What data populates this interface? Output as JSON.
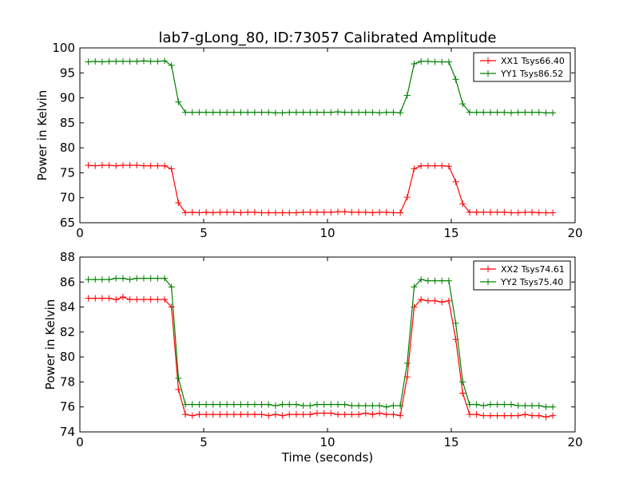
{
  "chart_data": [
    {
      "type": "line",
      "title": "lab7-gLong_80, ID:73057 Calibrated Amplitude",
      "xlabel": "",
      "ylabel": "Power in Kelvin",
      "xlim": [
        0,
        20
      ],
      "ylim": [
        65,
        100
      ],
      "x_ticks": [
        "0",
        "5",
        "10",
        "15",
        "20"
      ],
      "y_ticks": [
        "65",
        "70",
        "75",
        "80",
        "85",
        "90",
        "95",
        "100"
      ],
      "legend_position": "top-right",
      "grid": false,
      "x": [
        0.34,
        0.62,
        0.9,
        1.18,
        1.46,
        1.74,
        2.02,
        2.3,
        2.58,
        2.86,
        3.14,
        3.42,
        3.7,
        3.98,
        4.26,
        4.54,
        4.82,
        5.1,
        5.38,
        5.66,
        5.94,
        6.22,
        6.5,
        6.78,
        7.06,
        7.34,
        7.62,
        7.9,
        8.18,
        8.46,
        8.74,
        9.02,
        9.3,
        9.58,
        9.86,
        10.14,
        10.42,
        10.7,
        10.98,
        11.26,
        11.54,
        11.82,
        12.1,
        12.38,
        12.66,
        12.94,
        13.22,
        13.5,
        13.78,
        14.06,
        14.34,
        14.62,
        14.9,
        15.18,
        15.46,
        15.74,
        16.02,
        16.3,
        16.58,
        16.86,
        17.14,
        17.42,
        17.7,
        17.98,
        18.26,
        18.54,
        18.82,
        19.1
      ],
      "series": [
        {
          "name": "XX1 Tsys66.40",
          "color": "#ff0000",
          "values": [
            76.5,
            76.4,
            76.5,
            76.5,
            76.4,
            76.5,
            76.5,
            76.5,
            76.4,
            76.4,
            76.4,
            76.4,
            75.8,
            69.0,
            67.0,
            67.1,
            67.0,
            67.1,
            67.0,
            67.1,
            67.1,
            67.1,
            67.0,
            67.1,
            67.1,
            67.0,
            67.0,
            67.0,
            67.0,
            67.0,
            67.0,
            67.1,
            67.1,
            67.1,
            67.1,
            67.1,
            67.2,
            67.2,
            67.1,
            67.1,
            67.1,
            67.0,
            67.1,
            67.1,
            67.0,
            67.0,
            70.1,
            75.8,
            76.4,
            76.4,
            76.4,
            76.4,
            76.3,
            73.2,
            68.8,
            67.1,
            67.1,
            67.1,
            67.1,
            67.1,
            67.1,
            67.0,
            67.0,
            67.1,
            67.1,
            67.0,
            67.0,
            67.0
          ]
        },
        {
          "name": "YY1 Tsys86.52",
          "color": "#008000",
          "values": [
            97.2,
            97.3,
            97.2,
            97.3,
            97.3,
            97.3,
            97.3,
            97.3,
            97.4,
            97.3,
            97.3,
            97.4,
            96.5,
            89.2,
            87.1,
            87.1,
            87.1,
            87.1,
            87.1,
            87.1,
            87.1,
            87.1,
            87.1,
            87.1,
            87.1,
            87.1,
            87.1,
            87.0,
            87.0,
            87.1,
            87.1,
            87.1,
            87.1,
            87.1,
            87.1,
            87.1,
            87.2,
            87.1,
            87.1,
            87.1,
            87.1,
            87.1,
            87.0,
            87.1,
            87.1,
            87.0,
            90.5,
            96.8,
            97.3,
            97.3,
            97.2,
            97.2,
            97.2,
            93.7,
            88.8,
            87.1,
            87.1,
            87.1,
            87.1,
            87.1,
            87.1,
            87.0,
            87.1,
            87.1,
            87.1,
            87.1,
            87.0,
            87.0
          ]
        }
      ]
    },
    {
      "type": "line",
      "title": "",
      "xlabel": "Time (seconds)",
      "ylabel": "Power in Kelvin",
      "xlim": [
        0,
        20
      ],
      "ylim": [
        74,
        88
      ],
      "x_ticks": [
        "0",
        "5",
        "10",
        "15",
        "20"
      ],
      "y_ticks": [
        "74",
        "76",
        "78",
        "80",
        "82",
        "84",
        "86",
        "88"
      ],
      "legend_position": "top-right",
      "grid": false,
      "x": [
        0.34,
        0.62,
        0.9,
        1.18,
        1.46,
        1.74,
        2.02,
        2.3,
        2.58,
        2.86,
        3.14,
        3.42,
        3.7,
        3.98,
        4.26,
        4.54,
        4.82,
        5.1,
        5.38,
        5.66,
        5.94,
        6.22,
        6.5,
        6.78,
        7.06,
        7.34,
        7.62,
        7.9,
        8.18,
        8.46,
        8.74,
        9.02,
        9.3,
        9.58,
        9.86,
        10.14,
        10.42,
        10.7,
        10.98,
        11.26,
        11.54,
        11.82,
        12.1,
        12.38,
        12.66,
        12.94,
        13.22,
        13.5,
        13.78,
        14.06,
        14.34,
        14.62,
        14.9,
        15.18,
        15.46,
        15.74,
        16.02,
        16.3,
        16.58,
        16.86,
        17.14,
        17.42,
        17.7,
        17.98,
        18.26,
        18.54,
        18.82,
        19.1
      ],
      "series": [
        {
          "name": "XX2 Tsys74.61",
          "color": "#ff0000",
          "values": [
            84.7,
            84.7,
            84.7,
            84.7,
            84.6,
            84.8,
            84.6,
            84.6,
            84.6,
            84.6,
            84.6,
            84.6,
            84.0,
            77.4,
            75.4,
            75.3,
            75.4,
            75.4,
            75.4,
            75.4,
            75.4,
            75.4,
            75.4,
            75.4,
            75.4,
            75.4,
            75.3,
            75.4,
            75.3,
            75.4,
            75.4,
            75.4,
            75.4,
            75.5,
            75.5,
            75.5,
            75.4,
            75.4,
            75.4,
            75.4,
            75.5,
            75.4,
            75.5,
            75.4,
            75.4,
            75.3,
            78.4,
            84.0,
            84.6,
            84.5,
            84.5,
            84.4,
            84.5,
            81.4,
            77.1,
            75.4,
            75.4,
            75.3,
            75.3,
            75.3,
            75.3,
            75.3,
            75.3,
            75.4,
            75.3,
            75.3,
            75.2,
            75.3
          ]
        },
        {
          "name": "YY2 Tsys75.40",
          "color": "#008000",
          "values": [
            86.2,
            86.2,
            86.2,
            86.2,
            86.3,
            86.3,
            86.2,
            86.3,
            86.3,
            86.3,
            86.3,
            86.3,
            85.6,
            78.3,
            76.2,
            76.2,
            76.2,
            76.2,
            76.2,
            76.2,
            76.2,
            76.2,
            76.2,
            76.2,
            76.2,
            76.2,
            76.2,
            76.1,
            76.2,
            76.2,
            76.2,
            76.1,
            76.1,
            76.2,
            76.2,
            76.2,
            76.2,
            76.2,
            76.1,
            76.1,
            76.1,
            76.1,
            76.1,
            76.0,
            76.1,
            76.1,
            79.5,
            85.6,
            86.2,
            86.1,
            86.1,
            86.1,
            86.1,
            82.7,
            78.0,
            76.2,
            76.2,
            76.1,
            76.2,
            76.2,
            76.2,
            76.2,
            76.1,
            76.1,
            76.1,
            76.1,
            76.0,
            76.0
          ]
        }
      ]
    }
  ]
}
